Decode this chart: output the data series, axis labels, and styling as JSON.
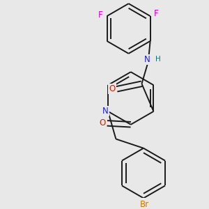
{
  "bg_color": "#e8e8e8",
  "bond_color": "#1a1a1a",
  "bond_width": 1.4,
  "atom_colors": {
    "N_amide": "#2222cc",
    "N_pyridine": "#2222cc",
    "O": "#cc2200",
    "F": "#dd00dd",
    "Br": "#cc7700",
    "H": "#007777",
    "C": "#1a1a1a"
  },
  "font_size": 8.5
}
